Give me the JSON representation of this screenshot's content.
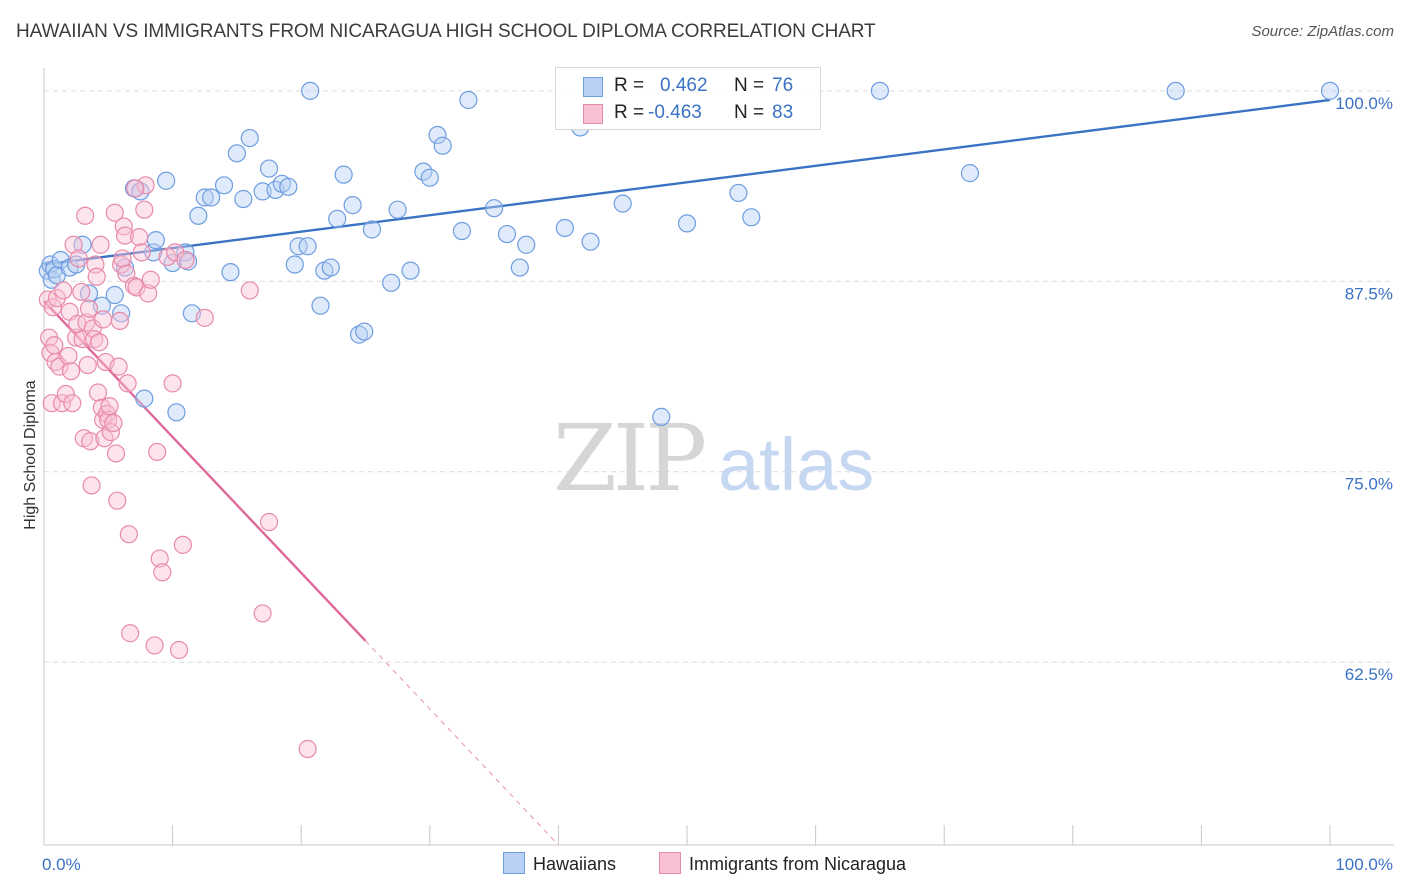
{
  "title": "HAWAIIAN VS IMMIGRANTS FROM NICARAGUA HIGH SCHOOL DIPLOMA CORRELATION CHART",
  "source": "Source: ZipAtlas.com",
  "watermark": {
    "zip": "ZIP",
    "atlas": "atlas"
  },
  "legend": {
    "rows": [
      {
        "r_label": "R =",
        "r_value": "0.462",
        "n_label": "N =",
        "n_value": "76",
        "color": "#6e9de0",
        "fill": "#b8d0f4"
      },
      {
        "r_label": "R =",
        "r_value": "-0.463",
        "n_label": "N =",
        "n_value": "83",
        "color": "#e88aaa",
        "fill": "#f8c2d4"
      }
    ]
  },
  "bottom_legend": {
    "hawaiians": "Hawaiians",
    "nicaragua": "Immigrants from Nicaragua"
  },
  "chart_data": {
    "type": "scatter",
    "title": "HAWAIIAN VS IMMIGRANTS FROM NICARAGUA HIGH SCHOOL DIPLOMA CORRELATION CHART",
    "xlabel": "",
    "ylabel": "High School Diploma",
    "xlim": [
      0,
      100
    ],
    "ylim": [
      50.5,
      101.5
    ],
    "x_tick_labels": [
      "0.0%",
      "100.0%"
    ],
    "y_ticks": [
      62.5,
      75.0,
      87.5,
      100.0
    ],
    "y_tick_labels": [
      "62.5%",
      "75.0%",
      "87.5%",
      "100.0%"
    ],
    "grid": "horizontal dashed",
    "legend_position": "top-center",
    "series": [
      {
        "name": "Hawaiians",
        "color": "#3a72c4",
        "marker_fill": "#b8d0f4",
        "marker_edge": "#6e9de0",
        "trend": {
          "x": [
            0,
            100
          ],
          "y": [
            88.6,
            99.4
          ],
          "style": "solid"
        },
        "points": [
          [
            0.3,
            88.2
          ],
          [
            0.5,
            88.6
          ],
          [
            0.6,
            87.6
          ],
          [
            0.8,
            88.3
          ],
          [
            1.0,
            87.9
          ],
          [
            1.3,
            88.9
          ],
          [
            2.0,
            88.4
          ],
          [
            2.5,
            88.6
          ],
          [
            3.0,
            89.9
          ],
          [
            3.5,
            86.7
          ],
          [
            4.5,
            85.9
          ],
          [
            5.5,
            86.6
          ],
          [
            6.0,
            85.4
          ],
          [
            6.3,
            88.4
          ],
          [
            7.0,
            93.6
          ],
          [
            7.5,
            93.4
          ],
          [
            7.8,
            79.8
          ],
          [
            8.5,
            89.4
          ],
          [
            8.7,
            90.2
          ],
          [
            9.5,
            94.1
          ],
          [
            10.0,
            88.7
          ],
          [
            10.3,
            78.9
          ],
          [
            11.0,
            89.4
          ],
          [
            11.2,
            88.8
          ],
          [
            11.5,
            85.4
          ],
          [
            12.0,
            91.8
          ],
          [
            12.5,
            93.0
          ],
          [
            13.0,
            93.0
          ],
          [
            14.0,
            93.8
          ],
          [
            14.5,
            88.1
          ],
          [
            15.0,
            95.9
          ],
          [
            15.5,
            92.9
          ],
          [
            16.0,
            96.9
          ],
          [
            17.0,
            93.4
          ],
          [
            17.5,
            94.9
          ],
          [
            18.0,
            93.5
          ],
          [
            18.5,
            93.9
          ],
          [
            19.0,
            93.7
          ],
          [
            19.5,
            88.6
          ],
          [
            19.8,
            89.8
          ],
          [
            20.5,
            89.8
          ],
          [
            20.7,
            100.0
          ],
          [
            21.5,
            85.9
          ],
          [
            21.8,
            88.2
          ],
          [
            22.3,
            88.4
          ],
          [
            22.8,
            91.6
          ],
          [
            23.3,
            94.5
          ],
          [
            24.0,
            92.5
          ],
          [
            24.5,
            84.0
          ],
          [
            24.9,
            84.2
          ],
          [
            25.5,
            90.9
          ],
          [
            27.0,
            87.4
          ],
          [
            27.5,
            92.2
          ],
          [
            28.5,
            88.2
          ],
          [
            29.5,
            94.7
          ],
          [
            30.0,
            94.3
          ],
          [
            30.6,
            97.1
          ],
          [
            31.0,
            96.4
          ],
          [
            32.5,
            90.8
          ],
          [
            33.0,
            99.4
          ],
          [
            35.0,
            92.3
          ],
          [
            36.0,
            90.6
          ],
          [
            37.0,
            88.4
          ],
          [
            37.5,
            89.9
          ],
          [
            40.5,
            91.0
          ],
          [
            41.7,
            97.6
          ],
          [
            42.5,
            90.1
          ],
          [
            45.0,
            92.6
          ],
          [
            48.0,
            78.6
          ],
          [
            50.0,
            91.3
          ],
          [
            54.0,
            93.3
          ],
          [
            55.0,
            91.7
          ],
          [
            65.0,
            100.0
          ],
          [
            72.0,
            94.6
          ],
          [
            88.0,
            100.0
          ],
          [
            100.0,
            100.0
          ]
        ]
      },
      {
        "name": "Immigrants from Nicaragua",
        "color": "#e0679a",
        "marker_fill": "#f8c2d4",
        "marker_edge": "#e88aaa",
        "trend": {
          "x": [
            0,
            25.0,
            40.0
          ],
          "y": [
            86.2,
            63.9,
            50.5
          ],
          "style": "solid-then-dashed"
        },
        "points": [
          [
            0.3,
            86.3
          ],
          [
            0.4,
            83.8
          ],
          [
            0.5,
            82.8
          ],
          [
            0.6,
            79.5
          ],
          [
            0.7,
            85.8
          ],
          [
            0.8,
            83.3
          ],
          [
            0.9,
            82.2
          ],
          [
            1.0,
            86.4
          ],
          [
            1.2,
            81.9
          ],
          [
            1.4,
            79.5
          ],
          [
            1.5,
            86.9
          ],
          [
            1.7,
            80.1
          ],
          [
            1.9,
            82.6
          ],
          [
            2.0,
            85.5
          ],
          [
            2.1,
            81.6
          ],
          [
            2.2,
            79.5
          ],
          [
            2.3,
            89.9
          ],
          [
            2.5,
            83.8
          ],
          [
            2.6,
            84.7
          ],
          [
            2.7,
            89.0
          ],
          [
            2.9,
            86.8
          ],
          [
            3.0,
            83.7
          ],
          [
            3.1,
            77.2
          ],
          [
            3.3,
            84.8
          ],
          [
            3.4,
            82.0
          ],
          [
            3.5,
            85.7
          ],
          [
            3.6,
            77.0
          ],
          [
            3.7,
            74.1
          ],
          [
            3.8,
            84.4
          ],
          [
            3.9,
            83.7
          ],
          [
            4.0,
            88.6
          ],
          [
            4.1,
            87.8
          ],
          [
            4.2,
            80.2
          ],
          [
            4.3,
            83.5
          ],
          [
            4.4,
            89.9
          ],
          [
            4.5,
            79.2
          ],
          [
            4.6,
            78.4
          ],
          [
            4.7,
            77.2
          ],
          [
            4.8,
            82.2
          ],
          [
            4.9,
            78.8
          ],
          [
            5.0,
            78.4
          ],
          [
            5.1,
            79.3
          ],
          [
            5.2,
            77.6
          ],
          [
            5.4,
            78.2
          ],
          [
            5.5,
            92.0
          ],
          [
            5.6,
            76.2
          ],
          [
            5.7,
            73.1
          ],
          [
            5.8,
            81.9
          ],
          [
            5.9,
            84.9
          ],
          [
            6.0,
            88.6
          ],
          [
            6.1,
            89.0
          ],
          [
            6.2,
            91.1
          ],
          [
            6.3,
            90.5
          ],
          [
            6.4,
            88.0
          ],
          [
            6.5,
            80.8
          ],
          [
            6.6,
            70.9
          ],
          [
            6.7,
            64.4
          ],
          [
            7.0,
            87.2
          ],
          [
            7.2,
            87.1
          ],
          [
            7.4,
            90.4
          ],
          [
            7.6,
            89.4
          ],
          [
            7.8,
            92.2
          ],
          [
            7.9,
            93.8
          ],
          [
            8.1,
            86.7
          ],
          [
            8.3,
            87.6
          ],
          [
            8.6,
            63.6
          ],
          [
            8.8,
            76.3
          ],
          [
            9.0,
            69.3
          ],
          [
            9.2,
            68.4
          ],
          [
            9.6,
            89.1
          ],
          [
            10.0,
            80.8
          ],
          [
            10.2,
            89.4
          ],
          [
            10.5,
            63.3
          ],
          [
            10.8,
            70.2
          ],
          [
            11.0,
            88.9
          ],
          [
            12.5,
            85.1
          ],
          [
            16.0,
            86.9
          ],
          [
            17.0,
            65.7
          ],
          [
            17.5,
            71.7
          ],
          [
            20.5,
            56.8
          ],
          [
            7.1,
            93.6
          ],
          [
            3.2,
            91.8
          ],
          [
            4.6,
            85.0
          ]
        ]
      }
    ]
  }
}
